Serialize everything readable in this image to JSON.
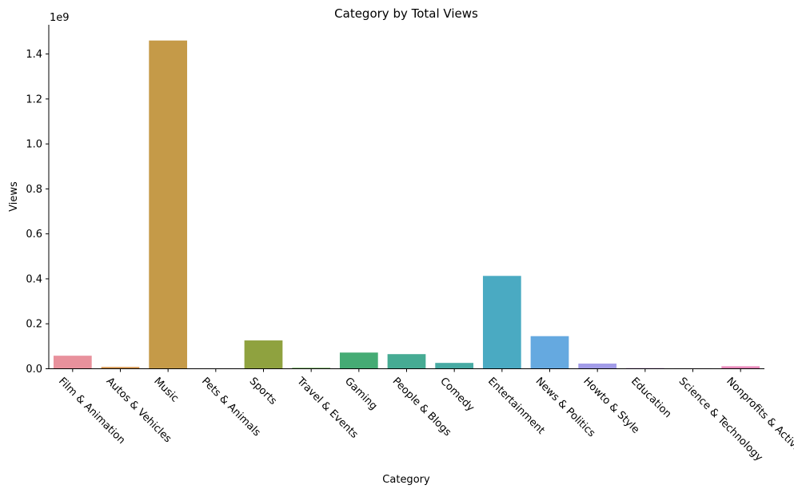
{
  "chart_data": {
    "type": "bar",
    "title": "Category by Total Views",
    "xlabel": "Category",
    "ylabel": "Views",
    "y_offset_label": "1e9",
    "y_scale": 1000000000,
    "ylim": [
      0,
      1.53
    ],
    "yticks": [
      0.0,
      0.2,
      0.4,
      0.6,
      0.8,
      1.0,
      1.2,
      1.4
    ],
    "ytick_labels": [
      "0.0",
      "0.2",
      "0.4",
      "0.6",
      "0.8",
      "1.0",
      "1.2",
      "1.4"
    ],
    "grid": false,
    "categories": [
      "Film & Animation",
      "Autos & Vehicles",
      "Music",
      "Pets & Animals",
      "Sports",
      "Travel & Events",
      "Gaming",
      "People & Blogs",
      "Comedy",
      "Entertainment",
      "News & Politics",
      "Howto & Style",
      "Education",
      "Science & Technology",
      "Nonprofits & Activism"
    ],
    "values": [
      58000000,
      8000000,
      1460000000,
      1000000,
      126000000,
      4000000,
      72000000,
      65000000,
      26000000,
      413000000,
      145000000,
      23000000,
      3000000,
      2000000,
      11000000
    ],
    "colors": [
      "#e8919c",
      "#d6964e",
      "#c59a48",
      "#b0a045",
      "#8fa23f",
      "#5aa840",
      "#45ab74",
      "#46ab93",
      "#47aaa3",
      "#4aaac2",
      "#65a9e0",
      "#a29ce8",
      "#c68ae8",
      "#de80d4",
      "#e888b9"
    ]
  }
}
